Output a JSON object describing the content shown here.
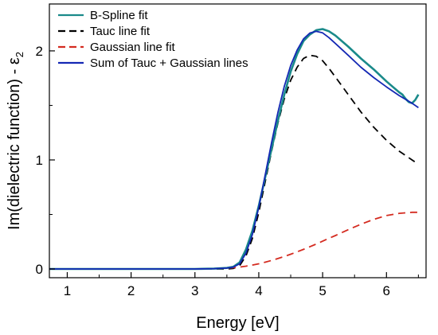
{
  "chart_data": {
    "type": "line",
    "xlabel": "Energy [eV]",
    "ylabel_main": "Im(dielectric function) - ε",
    "ylabel_sub": "2",
    "xlim": [
      0.72,
      6.62
    ],
    "ylim": [
      -0.08,
      2.43
    ],
    "xticks": [
      1,
      2,
      3,
      4,
      5,
      6
    ],
    "yticks": [
      0,
      1,
      2
    ],
    "grid": false,
    "legend_position": "top-left",
    "series": [
      {
        "name": "B-Spline fit",
        "color": "#1a8a8a",
        "dash": "solid",
        "x": [
          0.72,
          1.0,
          1.5,
          2.0,
          2.5,
          3.0,
          3.3,
          3.5,
          3.6,
          3.7,
          3.8,
          3.9,
          4.0,
          4.1,
          4.2,
          4.3,
          4.4,
          4.5,
          4.6,
          4.7,
          4.8,
          4.9,
          5.0,
          5.1,
          5.2,
          5.4,
          5.6,
          5.8,
          6.0,
          6.1,
          6.2,
          6.25,
          6.3,
          6.35,
          6.4,
          6.45,
          6.5
        ],
        "y": [
          0,
          0,
          0,
          0,
          0,
          0,
          0.003,
          0.01,
          0.02,
          0.06,
          0.18,
          0.35,
          0.58,
          0.84,
          1.1,
          1.36,
          1.6,
          1.81,
          1.97,
          2.09,
          2.15,
          2.19,
          2.2,
          2.18,
          2.14,
          2.04,
          1.93,
          1.83,
          1.72,
          1.67,
          1.62,
          1.6,
          1.56,
          1.53,
          1.52,
          1.55,
          1.6
        ]
      },
      {
        "name": "Tauc line fit",
        "color": "#000000",
        "dash": "9,6",
        "x": [
          0.72,
          1.0,
          1.5,
          2.0,
          2.5,
          3.0,
          3.3,
          3.5,
          3.6,
          3.7,
          3.8,
          3.9,
          4.0,
          4.1,
          4.2,
          4.3,
          4.4,
          4.5,
          4.6,
          4.7,
          4.8,
          4.9,
          5.0,
          5.1,
          5.2,
          5.4,
          5.6,
          5.8,
          6.0,
          6.2,
          6.4,
          6.5
        ],
        "y": [
          0,
          0,
          0,
          0,
          0,
          0,
          0,
          0,
          0.005,
          0.03,
          0.12,
          0.28,
          0.52,
          0.8,
          1.08,
          1.34,
          1.56,
          1.73,
          1.85,
          1.93,
          1.96,
          1.95,
          1.91,
          1.84,
          1.76,
          1.6,
          1.44,
          1.3,
          1.18,
          1.08,
          1.0,
          0.96
        ]
      },
      {
        "name": "Gaussian line fit",
        "color": "#d42b20",
        "dash": "9,6",
        "x": [
          0.72,
          1.0,
          1.5,
          2.0,
          2.5,
          3.0,
          3.3,
          3.5,
          3.6,
          3.7,
          3.8,
          3.9,
          4.0,
          4.1,
          4.2,
          4.3,
          4.4,
          4.5,
          4.6,
          4.7,
          4.8,
          4.9,
          5.0,
          5.1,
          5.2,
          5.4,
          5.6,
          5.8,
          6.0,
          6.2,
          6.4,
          6.5
        ],
        "y": [
          0,
          0,
          0,
          0,
          0,
          0,
          0.003,
          0.008,
          0.012,
          0.018,
          0.026,
          0.036,
          0.048,
          0.062,
          0.078,
          0.096,
          0.115,
          0.135,
          0.157,
          0.18,
          0.204,
          0.229,
          0.255,
          0.281,
          0.307,
          0.36,
          0.41,
          0.455,
          0.49,
          0.51,
          0.52,
          0.52
        ]
      },
      {
        "name": "Sum of Tauc + Gaussian lines",
        "color": "#1428b4",
        "dash": "solid",
        "x": [
          0.72,
          1.0,
          1.5,
          2.0,
          2.5,
          3.0,
          3.3,
          3.5,
          3.6,
          3.7,
          3.8,
          3.9,
          4.0,
          4.1,
          4.2,
          4.3,
          4.4,
          4.5,
          4.6,
          4.7,
          4.8,
          4.9,
          5.0,
          5.1,
          5.2,
          5.4,
          5.6,
          5.8,
          6.0,
          6.2,
          6.4,
          6.5
        ],
        "y": [
          0,
          0,
          0,
          0,
          0,
          0,
          0.003,
          0.008,
          0.017,
          0.048,
          0.146,
          0.316,
          0.568,
          0.862,
          1.158,
          1.436,
          1.675,
          1.865,
          2.007,
          2.11,
          2.164,
          2.179,
          2.165,
          2.121,
          2.067,
          1.96,
          1.85,
          1.755,
          1.67,
          1.59,
          1.52,
          1.48
        ]
      }
    ]
  }
}
